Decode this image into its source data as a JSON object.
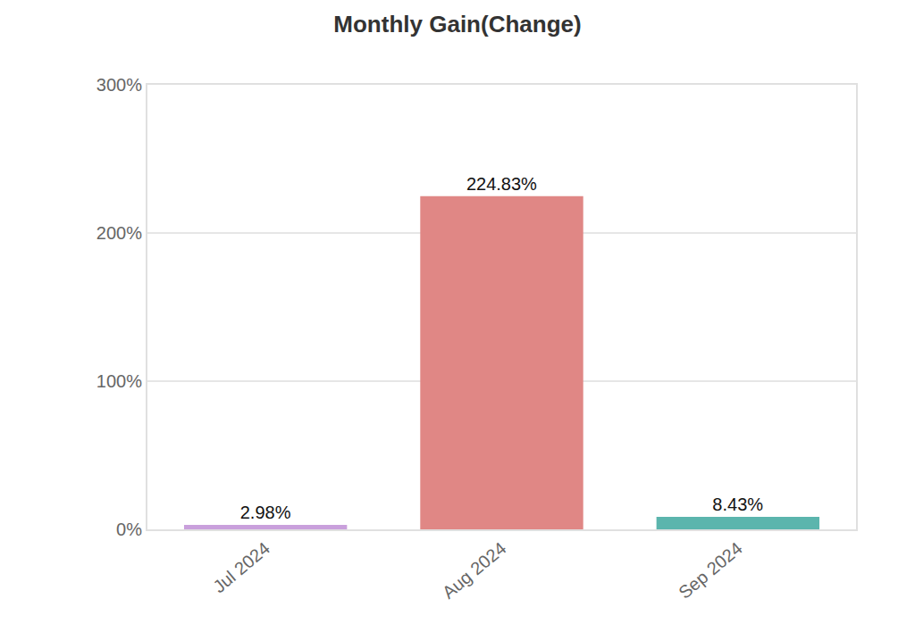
{
  "chart_data": {
    "type": "bar",
    "title": "Monthly Gain(Change)",
    "categories": [
      "Jul 2024",
      "Aug 2024",
      "Sep 2024"
    ],
    "values": [
      2.98,
      224.83,
      8.43
    ],
    "value_labels": [
      "2.98%",
      "224.83%",
      "8.43%"
    ],
    "colors": [
      "#c9a0dc",
      "#e08785",
      "#5bb5ad"
    ],
    "ylim": [
      0,
      300
    ],
    "yticks": [
      {
        "value": 0,
        "label": "0%"
      },
      {
        "value": 100,
        "label": "100%"
      },
      {
        "value": 200,
        "label": "200%"
      },
      {
        "value": 300,
        "label": "300%"
      }
    ],
    "grid": true,
    "data_labels": true
  }
}
